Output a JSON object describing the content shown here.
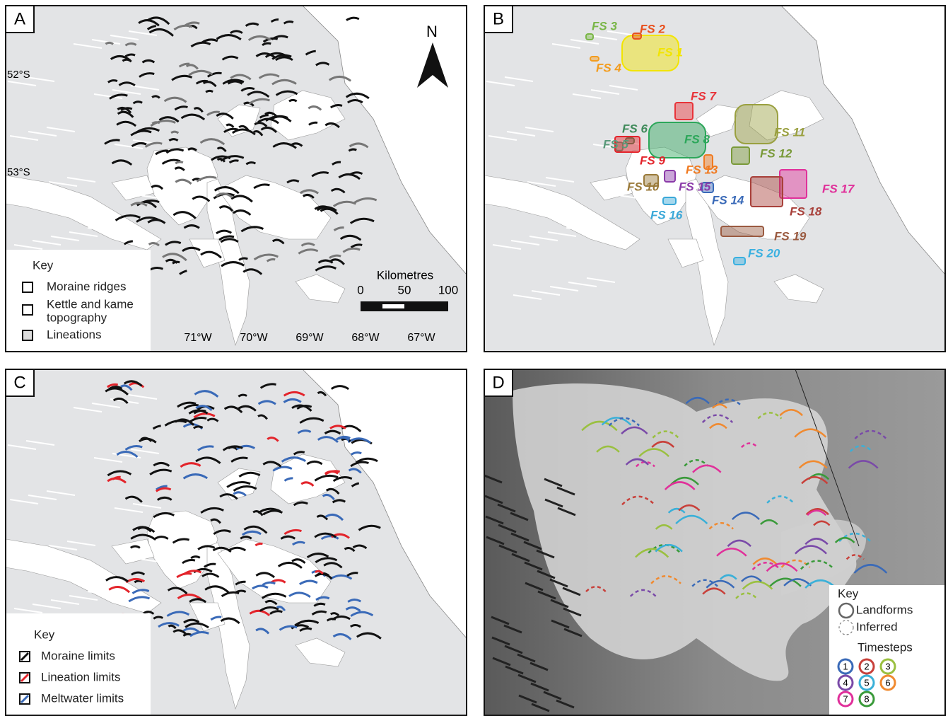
{
  "panel_a": {
    "label": "A",
    "north": "N",
    "latitudes": [
      "52°S",
      "53°S"
    ],
    "longitudes": [
      "71°W",
      "70°W",
      "69°W",
      "68°W",
      "67°W"
    ],
    "key": {
      "title": "Key",
      "items": [
        "Moraine ridges",
        "Kettle and kame",
        "topography",
        "Lineations"
      ]
    },
    "scale": {
      "title": "Kilometres",
      "ticks": [
        0,
        50,
        100
      ]
    }
  },
  "panel_b": {
    "label": "B",
    "flow_sets": [
      {
        "label": "FS 1",
        "color": "#f2e400"
      },
      {
        "label": "FS 2",
        "color": "#e8501e"
      },
      {
        "label": "FS 3",
        "color": "#7ab648"
      },
      {
        "label": "FS 4",
        "color": "#f39c1e"
      },
      {
        "label": "FS 5",
        "color": "#5a9a7a"
      },
      {
        "label": "FS 6",
        "color": "#3f8a5a"
      },
      {
        "label": "FS 7",
        "color": "#e8343a"
      },
      {
        "label": "FS 8",
        "color": "#2ca75a"
      },
      {
        "label": "FS 9",
        "color": "#e3242b"
      },
      {
        "label": "FS 10",
        "color": "#9a7a3a"
      },
      {
        "label": "FS 11",
        "color": "#9aa040"
      },
      {
        "label": "FS 12",
        "color": "#7a9a3a"
      },
      {
        "label": "FS 13",
        "color": "#f07a20"
      },
      {
        "label": "FS 14",
        "color": "#3a6ab8"
      },
      {
        "label": "FS 15",
        "color": "#8a3aa8"
      },
      {
        "label": "FS 16",
        "color": "#3aa8d8"
      },
      {
        "label": "FS 17",
        "color": "#e0309a"
      },
      {
        "label": "FS 18",
        "color": "#a8403a"
      },
      {
        "label": "FS 19",
        "color": "#9a5a40"
      },
      {
        "label": "FS 20",
        "color": "#3ab0e0"
      }
    ]
  },
  "panel_c": {
    "label": "C",
    "key": {
      "title": "Key",
      "items": [
        {
          "text": "Moraine limits",
          "color": "#111111"
        },
        {
          "text": "Lineation limits",
          "color": "#e3242b"
        },
        {
          "text": "Meltwater limits",
          "color": "#3a6ab8"
        }
      ]
    }
  },
  "panel_d": {
    "label": "D",
    "key": {
      "title": "Key",
      "items": [
        "Landforms",
        "Inferred"
      ],
      "timesteps_title": "Timesteps",
      "timesteps": [
        {
          "number": 1,
          "color": "#3a6ab8"
        },
        {
          "number": 2,
          "color": "#c8403a"
        },
        {
          "number": 3,
          "color": "#9ac040"
        },
        {
          "number": 4,
          "color": "#7a4aa8"
        },
        {
          "number": 5,
          "color": "#3ab0d8"
        },
        {
          "number": 6,
          "color": "#f08a30"
        },
        {
          "number": 7,
          "color": "#e0309a"
        },
        {
          "number": 8,
          "color": "#3a9a3a"
        }
      ]
    }
  }
}
